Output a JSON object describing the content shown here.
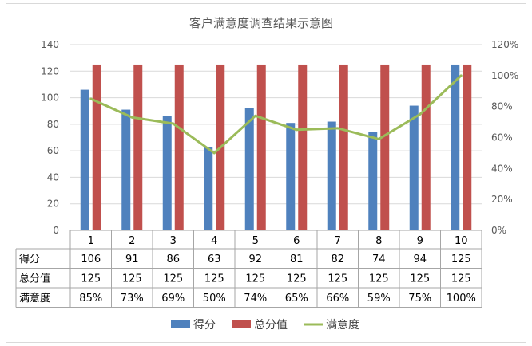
{
  "chart_data": {
    "type": "bar",
    "title": "客户满意度调查结果示意图",
    "categories": [
      "1",
      "2",
      "3",
      "4",
      "5",
      "6",
      "7",
      "8",
      "9",
      "10"
    ],
    "y_ticks": [
      "0",
      "20",
      "40",
      "60",
      "80",
      "100",
      "120",
      "140"
    ],
    "y2_ticks": [
      "0%",
      "20%",
      "40%",
      "60%",
      "80%",
      "100%",
      "120%"
    ],
    "ylim": [
      0,
      140
    ],
    "y2lim": [
      0,
      1.2
    ],
    "grid": true,
    "legend_position": "bottom",
    "series": [
      {
        "name": "得分",
        "type": "bar",
        "color": "#4f81bd",
        "values": [
          106,
          91,
          86,
          63,
          92,
          81,
          82,
          74,
          94,
          125
        ],
        "labels": [
          "106",
          "91",
          "86",
          "63",
          "92",
          "81",
          "82",
          "74",
          "94",
          "125"
        ]
      },
      {
        "name": "总分值",
        "type": "bar",
        "color": "#c0504d",
        "values": [
          125,
          125,
          125,
          125,
          125,
          125,
          125,
          125,
          125,
          125
        ],
        "labels": [
          "125",
          "125",
          "125",
          "125",
          "125",
          "125",
          "125",
          "125",
          "125",
          "125"
        ]
      },
      {
        "name": "满意度",
        "type": "line",
        "axis": "secondary",
        "color": "#9bbb59",
        "values": [
          0.85,
          0.73,
          0.69,
          0.5,
          0.74,
          0.65,
          0.66,
          0.59,
          0.75,
          1.0
        ],
        "labels": [
          "85%",
          "73%",
          "69%",
          "50%",
          "74%",
          "65%",
          "66%",
          "59%",
          "75%",
          "100%"
        ]
      }
    ]
  }
}
